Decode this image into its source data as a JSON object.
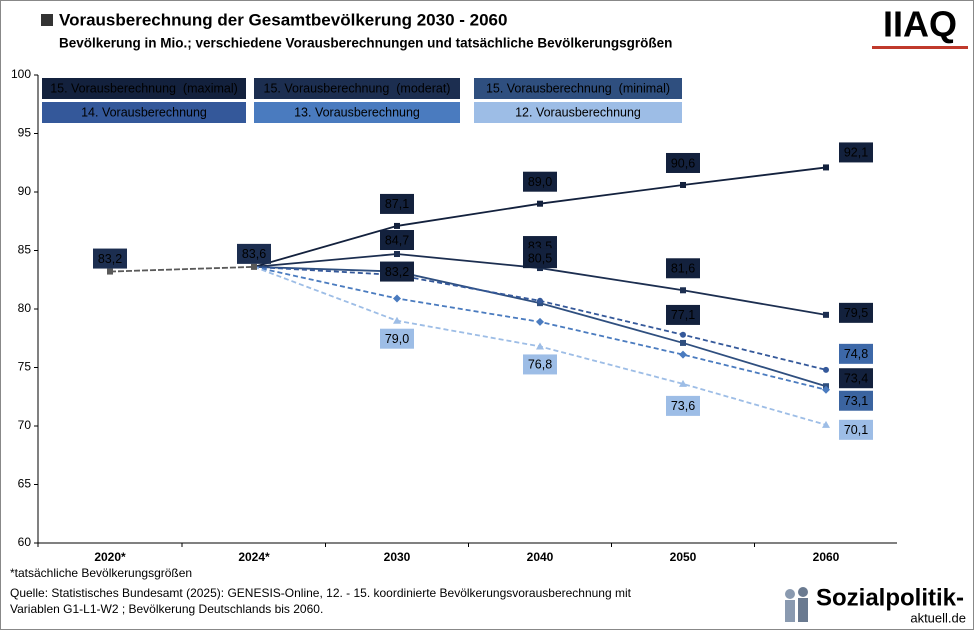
{
  "chart_data": {
    "type": "line",
    "title": "Vorausberechnung der Gesamtbevölkerung 2030 - 2060",
    "subtitle": "Bevölkerung in Mio.; verschiedene Vorausberechnungen und tatsächliche Bevölkerungsgrößen",
    "categories": [
      "2020*",
      "2024*",
      "2030",
      "2040",
      "2050",
      "2060"
    ],
    "actual_values": [
      83.2,
      83.6
    ],
    "actual_value_labels": [
      "83,2",
      "83,6"
    ],
    "actual_color": "#595959",
    "series": [
      {
        "name": "15. Vorausberechnung  (maximal)",
        "color": "#13213d",
        "label_color": "#13213d",
        "dashed": false,
        "marker": "square",
        "values": [
          null,
          null,
          87.1,
          89.0,
          90.6,
          92.1
        ],
        "value_labels": [
          null,
          null,
          "87,1",
          "89,0",
          "90,6",
          "92,1"
        ]
      },
      {
        "name": "15. Vorausberechnung  (moderat)",
        "color": "#1c2e50",
        "label_color": "#13213d",
        "dashed": false,
        "marker": "square",
        "values": [
          null,
          null,
          84.7,
          83.5,
          81.6,
          79.5
        ],
        "value_labels": [
          null,
          null,
          "84,7",
          "83,5",
          "81,6",
          "79,5"
        ]
      },
      {
        "name": "15. Vorausberechnung  (minimal)",
        "color": "#2f4f7f",
        "label_color": "#13213d",
        "dashed": false,
        "marker": "square",
        "values": [
          null,
          null,
          83.2,
          80.5,
          77.1,
          73.4
        ],
        "value_labels": [
          null,
          null,
          "83,2",
          "80,5",
          "77,1",
          "73,4"
        ]
      },
      {
        "name": "14. Vorausberechnung",
        "color": "#34589a",
        "label_color": "#3d68a8",
        "dashed": true,
        "marker": "circle",
        "values": [
          null,
          null,
          82.9,
          80.7,
          77.8,
          74.8
        ],
        "value_labels": [
          null,
          null,
          null,
          null,
          null,
          "74,8"
        ]
      },
      {
        "name": "13. Vorausberechnung",
        "color": "#4a7bbf",
        "label_color": "#3b64a0",
        "dashed": true,
        "marker": "diamond",
        "values": [
          null,
          null,
          80.9,
          78.9,
          76.1,
          73.1
        ],
        "value_labels": [
          null,
          null,
          null,
          null,
          null,
          "73,1"
        ]
      },
      {
        "name": "12. Vorausberechnung",
        "color": "#9dbde6",
        "label_color": "#9dbde6",
        "dashed": true,
        "marker": "triangle",
        "values": [
          null,
          null,
          79.0,
          76.8,
          73.6,
          70.1
        ],
        "value_labels": [
          null,
          null,
          "79,0",
          "76,8",
          "73,6",
          "70,1"
        ]
      }
    ],
    "ylim": [
      60,
      100
    ],
    "yticks": [
      60,
      65,
      70,
      75,
      80,
      85,
      90,
      95,
      100
    ],
    "grid": false,
    "footnote": "*tatsächliche Bevölkerungsgrößen",
    "source": [
      "Quelle: Statistisches Bundesamt (2025): GENESIS-Online, 12. - 15. koordinierte Bevölkerungsvorausberechnung mit",
      "Variablen G1-L1-W2 ; Bevölkerung Deutschlands bis 2060."
    ],
    "logo_iaq": "IIAQ",
    "logo_sozialpolitik": [
      "Sozialpolitik-",
      "aktuell.de"
    ]
  }
}
